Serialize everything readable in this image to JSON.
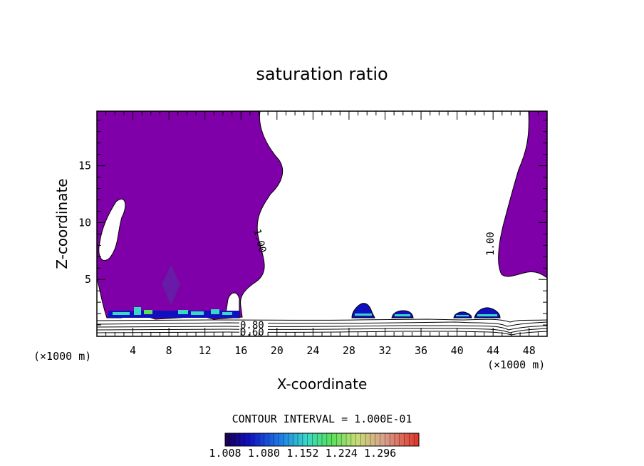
{
  "chart_data": {
    "type": "contour",
    "title": "saturation ratio",
    "xlabel": "X-coordinate",
    "ylabel": "Z-coordinate",
    "x_unit_left": "(×1000 m)",
    "x_unit_right": "(×1000 m)",
    "xlim": [
      0,
      50
    ],
    "ylim": [
      0,
      19.8
    ],
    "x_ticks": [
      4,
      8,
      12,
      16,
      20,
      24,
      28,
      32,
      36,
      40,
      44,
      48
    ],
    "y_ticks": [
      5,
      10,
      15
    ],
    "contour_interval_label": "CONTOUR INTERVAL = 1.000E-01",
    "contour_labels": [
      "1.00",
      "1.00",
      "0.80",
      "0.60"
    ],
    "colorbar": {
      "ticks": [
        "1.008",
        "1.080",
        "1.152",
        "1.224",
        "1.296"
      ],
      "min": 1.008,
      "max": 1.296
    },
    "fill_color": "#7f00a8",
    "features": {
      "left_supersaturated_region": {
        "x_range": [
          0,
          20.5
        ],
        "z_range": [
          1.6,
          19.8
        ]
      },
      "right_supersaturated_region": {
        "x_range": [
          44.3,
          50
        ],
        "z_range": [
          5.2,
          19.8
        ]
      },
      "surface_contours_z_range": [
        0,
        1.4
      ],
      "small_cells_x": [
        29.5,
        33.5,
        40.5,
        43.5
      ]
    }
  }
}
